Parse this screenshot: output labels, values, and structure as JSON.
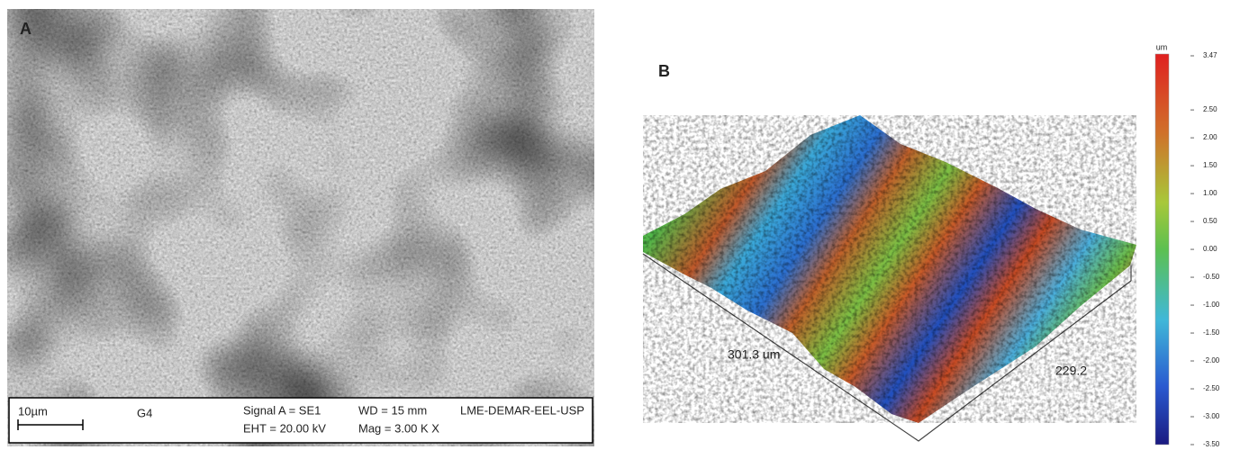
{
  "panel_a": {
    "label": "A",
    "info_bar": {
      "scale_bar": "10µm",
      "sample": "G4",
      "signal": "Signal A = SE1",
      "wd": "WD =  15 mm",
      "eht": "EHT = 20.00 kV",
      "mag": "Mag =  3.00 K X",
      "lab": "LME-DEMAR-EEL-USP"
    }
  },
  "panel_b": {
    "label": "B",
    "x_length": "301.3 um",
    "y_length": "229.2",
    "colorbar": {
      "unit": "um",
      "ticks": [
        "3.47",
        "2.50",
        "2.00",
        "1.50",
        "1.00",
        "0.50",
        "0.00",
        "-0.50",
        "-1.00",
        "-1.50",
        "-2.00",
        "-2.50",
        "-3.00",
        "-3.50"
      ]
    }
  }
}
